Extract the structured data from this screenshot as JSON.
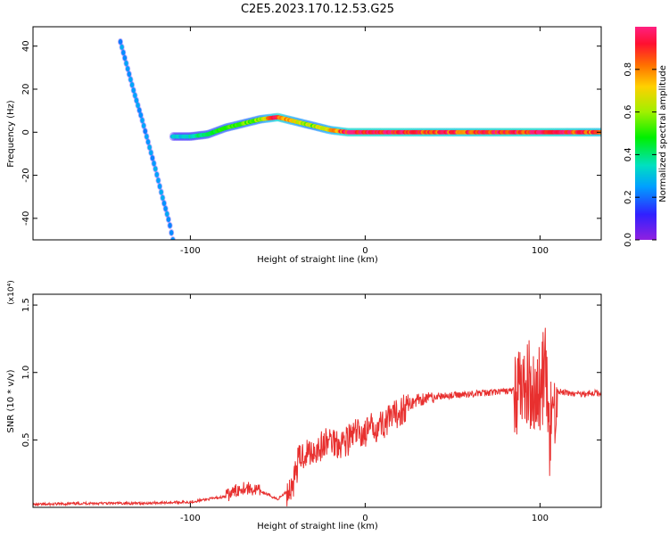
{
  "title": "C2E5.2023.170.12.53.G25",
  "chart_data": [
    {
      "type": "heatmap",
      "title": "C2E5.2023.170.12.53.G25",
      "xlabel": "Height of straight line (km)",
      "ylabel": "Frequency (Hz)",
      "xlim": [
        -190,
        135
      ],
      "ylim": [
        -50,
        49
      ],
      "xticks": [
        -100,
        0,
        100
      ],
      "xtick_labels": [
        "-100",
        "0",
        "100"
      ],
      "yticks": [
        -40,
        -20,
        0,
        20,
        40
      ],
      "ytick_labels": [
        "-40",
        "-20",
        "0",
        "20",
        "40"
      ],
      "colorbar": {
        "label": "Normalized spectral amplitude",
        "range": [
          0,
          1
        ],
        "ticks": [
          0,
          0.2,
          0.4,
          0.6,
          0.8
        ],
        "tick_labels": [
          "0.0",
          "0.2",
          "0.4",
          "0.6",
          "0.8"
        ],
        "colormap": "rainbow"
      },
      "ridges": [
        {
          "name": "",
          "x": [
            -140,
            -136,
            -132,
            -128,
            -124,
            -120,
            -116,
            -112,
            -110
          ],
          "y": [
            42,
            30,
            18,
            7,
            -5,
            -17,
            -30,
            -42,
            -50
          ],
          "amplitude": 0.25
        },
        {
          "name": "",
          "x": [
            -110,
            -100,
            -90,
            -80,
            -70,
            -60,
            -50,
            -40,
            -30,
            -20,
            -10,
            0,
            20,
            40,
            60,
            80,
            100,
            120,
            135
          ],
          "y": [
            -2,
            -2,
            -1,
            2,
            4,
            6,
            7,
            5,
            3,
            1,
            0,
            0,
            0,
            0,
            0,
            0,
            0,
            0,
            0
          ],
          "amplitude": [
            0.3,
            0.35,
            0.45,
            0.5,
            0.55,
            0.6,
            0.95,
            0.7,
            0.6,
            0.75,
            0.95,
            0.95,
            0.95,
            0.9,
            0.9,
            0.95,
            0.95,
            0.9,
            0.85
          ]
        }
      ]
    },
    {
      "type": "line",
      "xlabel": "Height of straight line (km)",
      "ylabel": "SNR (10 * v/v)",
      "y_multiplier": "(x10⁴)",
      "xlim": [
        -190,
        135
      ],
      "ylim": [
        0,
        1.58
      ],
      "xticks": [
        -100,
        0,
        100
      ],
      "xtick_labels": [
        "-100",
        "0",
        "100"
      ],
      "yticks": [
        0.5,
        1.0,
        1.5
      ],
      "ytick_labels": [
        "0.5",
        "1.0",
        "1.5"
      ],
      "series": [
        {
          "name": "",
          "color": "#e8302f",
          "x": [
            -190,
            -160,
            -130,
            -100,
            -80,
            -70,
            -60,
            -50,
            -42,
            -38,
            -35,
            -30,
            -25,
            -20,
            -15,
            -10,
            -5,
            0,
            5,
            10,
            15,
            20,
            30,
            40,
            50,
            60,
            70,
            80,
            90,
            95,
            100,
            103,
            105,
            110,
            120,
            135
          ],
          "y": [
            0.02,
            0.03,
            0.03,
            0.04,
            0.08,
            0.15,
            0.12,
            0.06,
            0.15,
            0.35,
            0.4,
            0.42,
            0.45,
            0.5,
            0.48,
            0.5,
            0.55,
            0.55,
            0.6,
            0.62,
            0.65,
            0.72,
            0.8,
            0.82,
            0.83,
            0.84,
            0.85,
            0.86,
            0.87,
            0.9,
            0.85,
            1.05,
            0.5,
            0.86,
            0.84,
            0.85
          ]
        }
      ]
    }
  ]
}
